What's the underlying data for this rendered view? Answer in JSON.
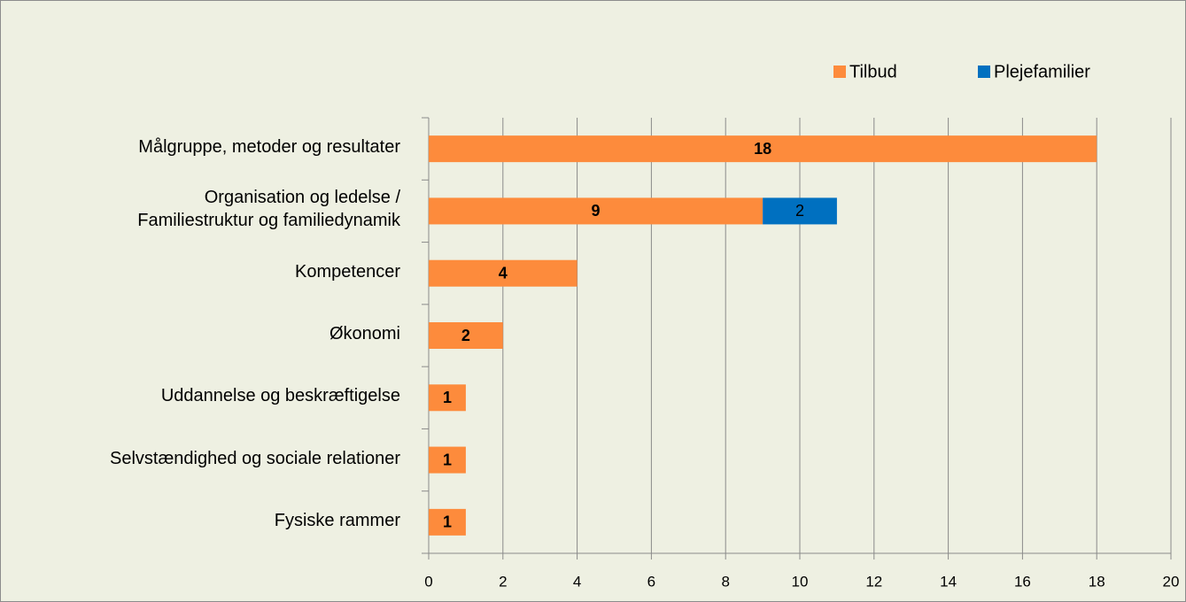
{
  "chart_data": {
    "type": "bar",
    "orientation": "horizontal",
    "stacked": true,
    "categories": [
      "Målgruppe, metoder og resultater",
      "Organisation og ledelse /\nFamiliestruktur og familiedynamik",
      "Kompetencer",
      "Økonomi",
      "Uddannelse og beskræftigelse",
      "Selvstændighed og sociale relationer",
      "Fysiske rammer"
    ],
    "series": [
      {
        "name": "Tilbud",
        "color": "#fd8b3c",
        "values": [
          18,
          9,
          4,
          2,
          1,
          1,
          1
        ]
      },
      {
        "name": "Plejefamilier",
        "color": "#0070c0",
        "values": [
          null,
          2,
          null,
          null,
          null,
          null,
          null
        ]
      }
    ],
    "xlim": [
      0,
      20
    ],
    "xticks": [
      0,
      2,
      4,
      6,
      8,
      10,
      12,
      14,
      16,
      18,
      20
    ],
    "grid": true,
    "legend": "top-right"
  }
}
